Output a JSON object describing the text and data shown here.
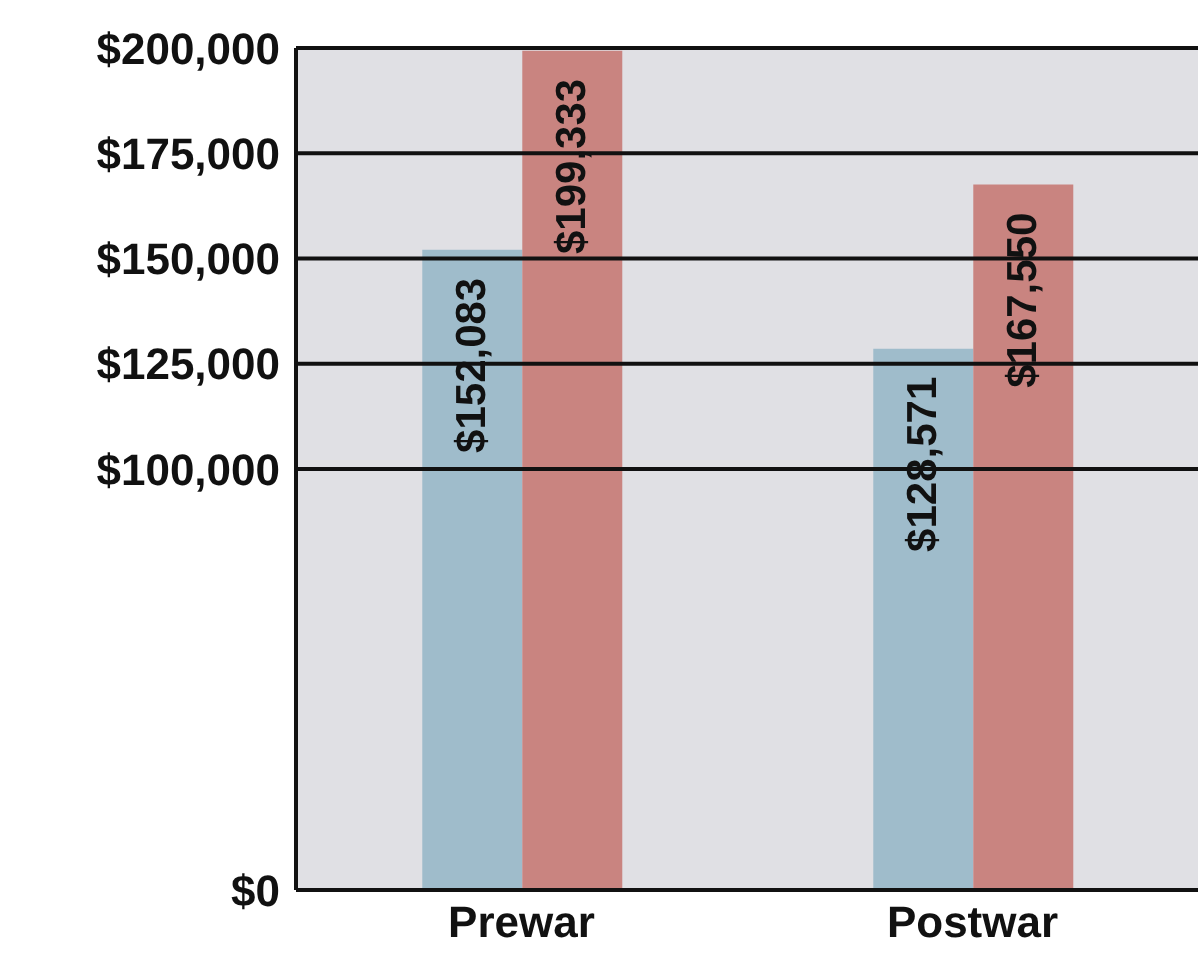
{
  "chart_data": {
    "type": "bar",
    "categories": [
      "Prewar",
      "Postwar"
    ],
    "series": [
      {
        "color": "#9fbccb",
        "values": [
          152083,
          128571
        ],
        "value_labels": [
          "$152,083",
          "$128,571"
        ]
      },
      {
        "color": "#c98480",
        "values": [
          199333,
          167550
        ],
        "value_labels": [
          "$199,333",
          "$167,550"
        ]
      }
    ],
    "ylim": [
      0,
      200000
    ],
    "yticks": [
      {
        "value": 0,
        "label": "$0"
      },
      {
        "value": 100000,
        "label": "$100,000"
      },
      {
        "value": 125000,
        "label": "$125,000"
      },
      {
        "value": 150000,
        "label": "$150,000"
      },
      {
        "value": 175000,
        "label": "$175,000"
      },
      {
        "value": 200000,
        "label": "$200,000"
      }
    ],
    "grid": "y",
    "legend": false
  }
}
